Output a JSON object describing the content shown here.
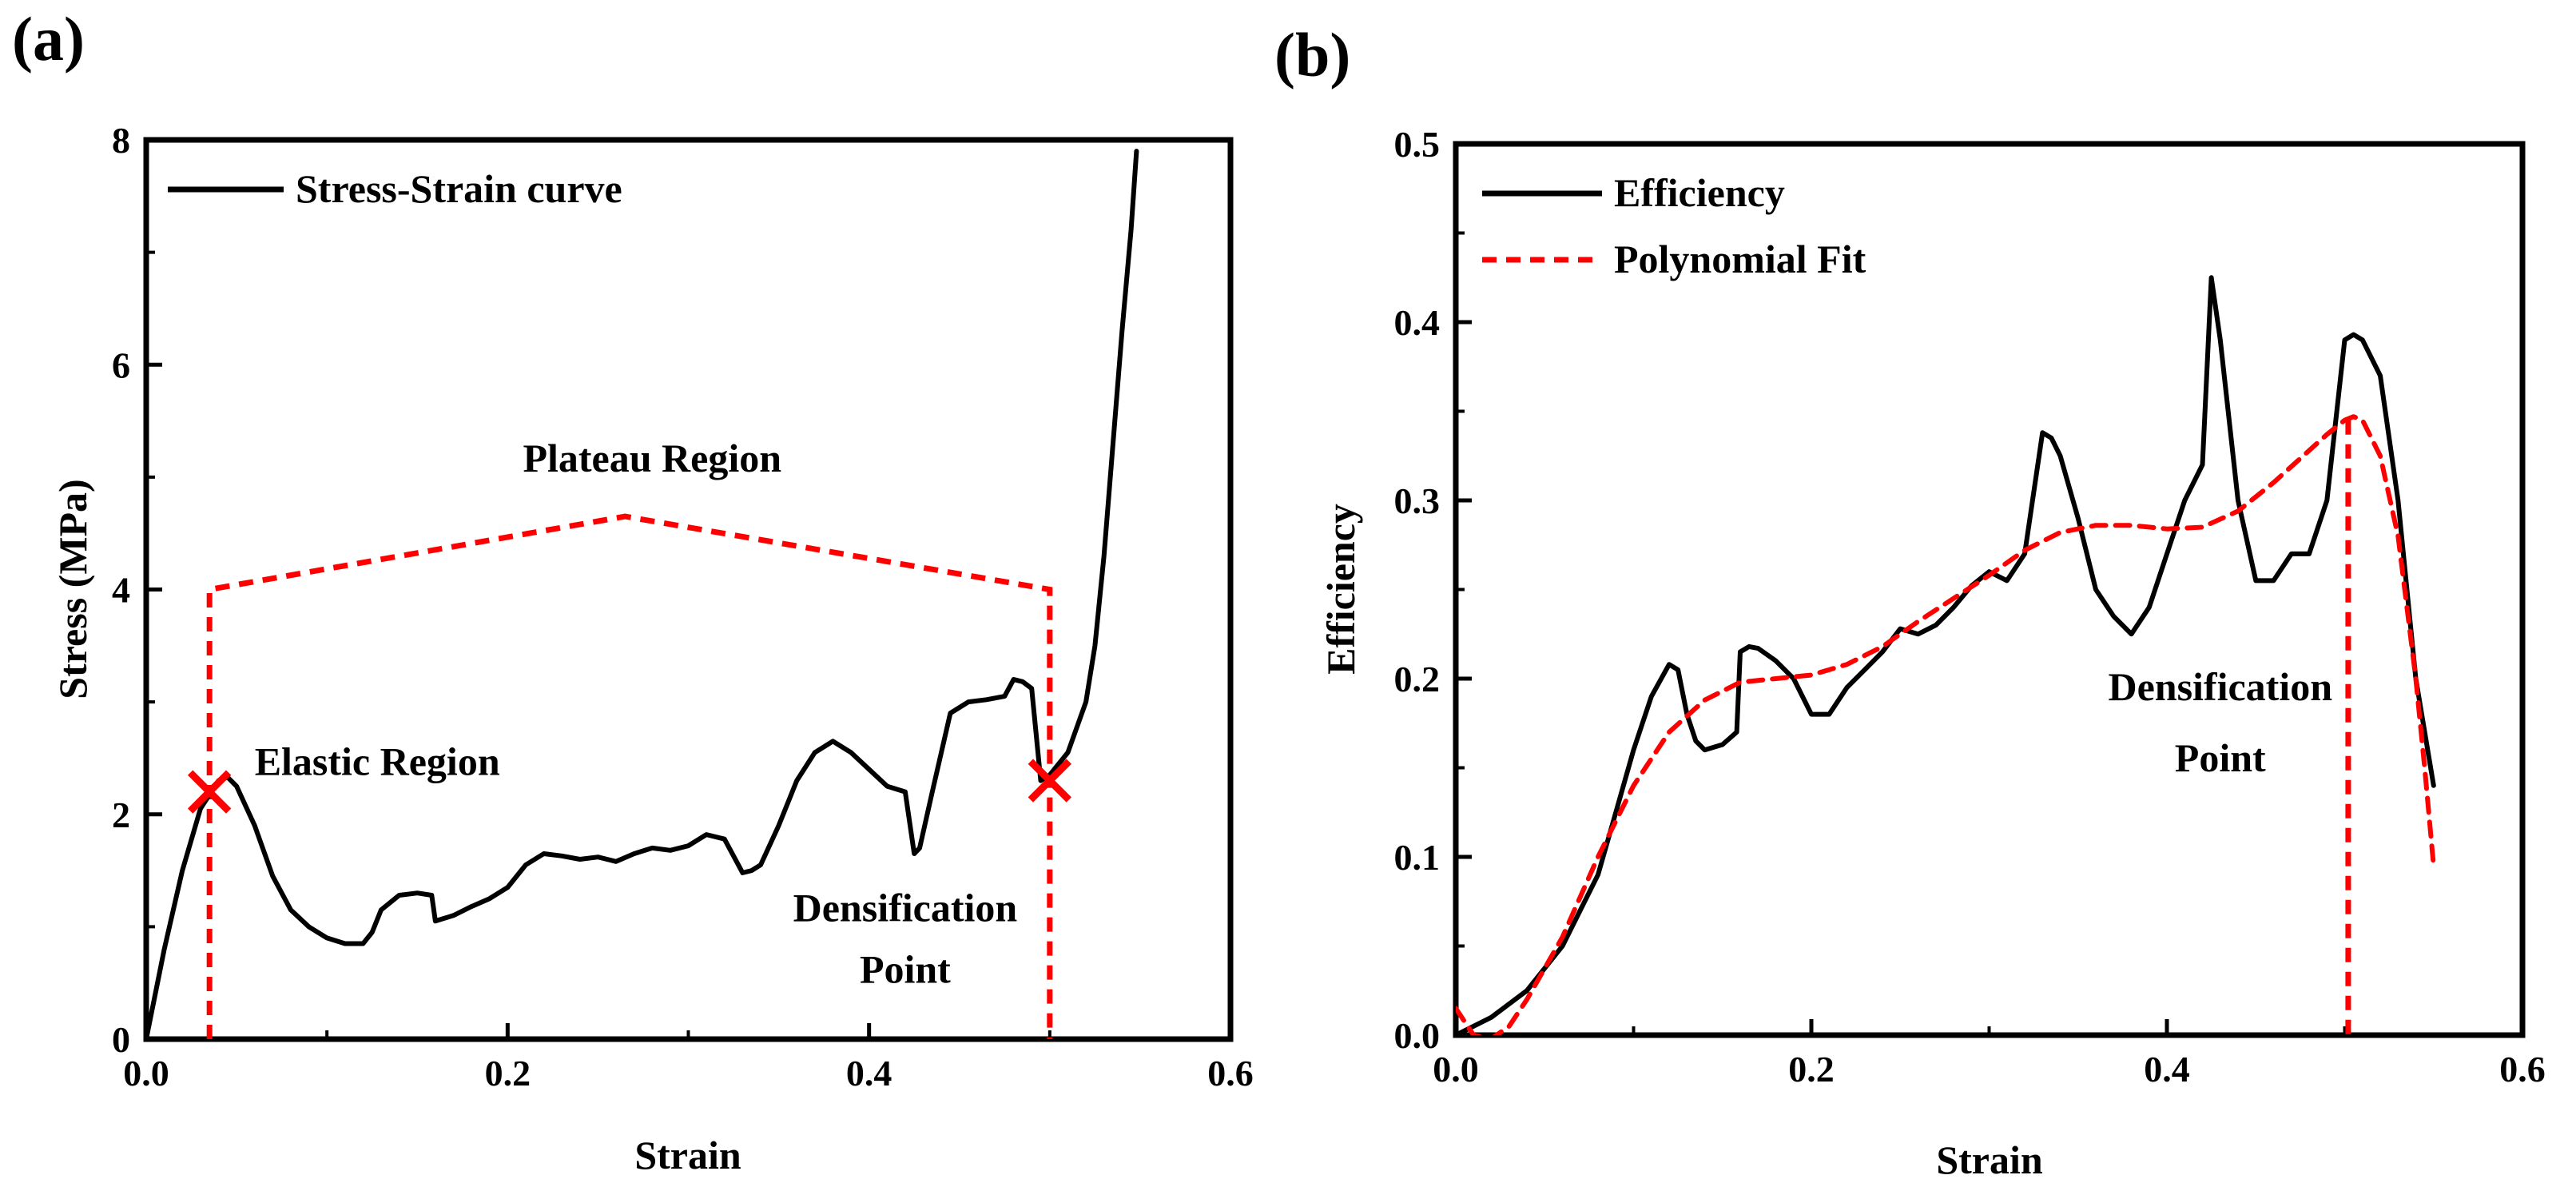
{
  "chart_data": [
    {
      "type": "line",
      "panel_label": "(a)",
      "xlabel": "Strain",
      "ylabel": "Stress (MPa)",
      "xlim": [
        0,
        0.6
      ],
      "ylim": [
        0,
        8
      ],
      "xticks": [
        0.0,
        0.2,
        0.4,
        0.6
      ],
      "xtick_labels": [
        "0.0",
        "0.2",
        "0.4",
        "0.6"
      ],
      "yticks": [
        0,
        2,
        4,
        6,
        8
      ],
      "ytick_labels": [
        "0",
        "2",
        "4",
        "6",
        "8"
      ],
      "legend_position": "top-left",
      "series": [
        {
          "name": "Stress-Strain curve",
          "style": "solid",
          "color": "#000000",
          "x": [
            0,
            0.01,
            0.02,
            0.03,
            0.04,
            0.045,
            0.05,
            0.06,
            0.07,
            0.08,
            0.09,
            0.1,
            0.11,
            0.12,
            0.125,
            0.13,
            0.14,
            0.15,
            0.158,
            0.16,
            0.17,
            0.18,
            0.19,
            0.2,
            0.21,
            0.22,
            0.23,
            0.24,
            0.25,
            0.26,
            0.27,
            0.28,
            0.29,
            0.3,
            0.31,
            0.32,
            0.33,
            0.335,
            0.34,
            0.35,
            0.36,
            0.37,
            0.38,
            0.39,
            0.4,
            0.41,
            0.42,
            0.425,
            0.428,
            0.435,
            0.445,
            0.455,
            0.465,
            0.475,
            0.48,
            0.485,
            0.49,
            0.495,
            0.5,
            0.505,
            0.51,
            0.52,
            0.525,
            0.53,
            0.535,
            0.54,
            0.545,
            0.548
          ],
          "y": [
            0,
            0.8,
            1.5,
            2.05,
            2.3,
            2.33,
            2.25,
            1.9,
            1.45,
            1.15,
            1.0,
            0.9,
            0.85,
            0.85,
            0.95,
            1.15,
            1.28,
            1.3,
            1.28,
            1.05,
            1.1,
            1.18,
            1.25,
            1.35,
            1.55,
            1.65,
            1.63,
            1.6,
            1.62,
            1.58,
            1.65,
            1.7,
            1.68,
            1.72,
            1.82,
            1.78,
            1.48,
            1.5,
            1.55,
            1.9,
            2.3,
            2.55,
            2.65,
            2.55,
            2.4,
            2.25,
            2.2,
            1.65,
            1.7,
            2.2,
            2.9,
            3.0,
            3.02,
            3.05,
            3.2,
            3.18,
            3.12,
            2.3,
            2.35,
            2.45,
            2.55,
            3.0,
            3.5,
            4.3,
            5.3,
            6.3,
            7.2,
            7.9
          ]
        }
      ],
      "markers": [
        {
          "type": "x",
          "x": 0.035,
          "y": 2.2,
          "color": "#ff0000"
        },
        {
          "type": "x",
          "x": 0.5,
          "y": 2.3,
          "color": "#ff0000"
        }
      ],
      "annotation_lines": [
        {
          "style": "dashed",
          "color": "#ff0000",
          "points": [
            [
              0.035,
              0
            ],
            [
              0.035,
              4.0
            ],
            [
              0.265,
              4.65
            ],
            [
              0.5,
              4.0
            ],
            [
              0.5,
              0
            ]
          ]
        }
      ],
      "annotations": [
        {
          "text": "Elastic Region",
          "x": 0.06,
          "y": 2.35
        },
        {
          "text": "Plateau Region",
          "x": 0.28,
          "y": 5.05
        },
        {
          "text": "Densification",
          "x": 0.42,
          "y": 1.05
        },
        {
          "text": "Point",
          "x": 0.42,
          "y": 0.5
        }
      ]
    },
    {
      "type": "line",
      "panel_label": "(b)",
      "xlabel": "Strain",
      "ylabel": "Efficiency",
      "xlim": [
        0,
        0.6
      ],
      "ylim": [
        0,
        0.5
      ],
      "xticks": [
        0.0,
        0.2,
        0.4,
        0.6
      ],
      "xtick_labels": [
        "0.0",
        "0.2",
        "0.4",
        "0.6"
      ],
      "yticks": [
        0.0,
        0.1,
        0.2,
        0.3,
        0.4,
        0.5
      ],
      "ytick_labels": [
        "0.0",
        "0.1",
        "0.2",
        "0.3",
        "0.4",
        "0.5"
      ],
      "legend_position": "top-left",
      "series": [
        {
          "name": "Efficiency",
          "style": "solid",
          "color": "#000000",
          "x": [
            0,
            0.02,
            0.04,
            0.06,
            0.08,
            0.09,
            0.1,
            0.11,
            0.12,
            0.125,
            0.13,
            0.135,
            0.14,
            0.15,
            0.158,
            0.16,
            0.165,
            0.17,
            0.18,
            0.19,
            0.2,
            0.21,
            0.22,
            0.23,
            0.24,
            0.25,
            0.26,
            0.27,
            0.28,
            0.29,
            0.3,
            0.31,
            0.32,
            0.33,
            0.335,
            0.34,
            0.35,
            0.36,
            0.37,
            0.38,
            0.39,
            0.4,
            0.41,
            0.42,
            0.425,
            0.43,
            0.44,
            0.45,
            0.46,
            0.47,
            0.48,
            0.49,
            0.5,
            0.505,
            0.51,
            0.52,
            0.53,
            0.54,
            0.55
          ],
          "y": [
            0,
            0.01,
            0.025,
            0.05,
            0.09,
            0.125,
            0.16,
            0.19,
            0.208,
            0.205,
            0.18,
            0.165,
            0.16,
            0.163,
            0.17,
            0.215,
            0.218,
            0.217,
            0.21,
            0.2,
            0.18,
            0.18,
            0.195,
            0.205,
            0.215,
            0.228,
            0.225,
            0.23,
            0.24,
            0.252,
            0.26,
            0.255,
            0.27,
            0.338,
            0.335,
            0.325,
            0.29,
            0.25,
            0.235,
            0.225,
            0.24,
            0.27,
            0.3,
            0.32,
            0.425,
            0.39,
            0.3,
            0.255,
            0.255,
            0.27,
            0.27,
            0.3,
            0.39,
            0.393,
            0.39,
            0.37,
            0.3,
            0.2,
            0.14
          ]
        },
        {
          "name": "Polynomial Fit",
          "style": "dashed",
          "color": "#ff0000",
          "x": [
            0,
            0.01,
            0.02,
            0.03,
            0.04,
            0.06,
            0.08,
            0.1,
            0.12,
            0.14,
            0.16,
            0.18,
            0.2,
            0.22,
            0.24,
            0.26,
            0.28,
            0.3,
            0.32,
            0.34,
            0.36,
            0.38,
            0.4,
            0.42,
            0.44,
            0.46,
            0.48,
            0.49,
            0.5,
            0.505,
            0.51,
            0.52,
            0.53,
            0.54,
            0.545,
            0.55
          ],
          "y": [
            0.015,
            0.0,
            -0.002,
            0.005,
            0.02,
            0.055,
            0.1,
            0.14,
            0.17,
            0.188,
            0.198,
            0.2,
            0.202,
            0.208,
            0.218,
            0.232,
            0.245,
            0.258,
            0.272,
            0.282,
            0.286,
            0.286,
            0.284,
            0.285,
            0.294,
            0.31,
            0.328,
            0.337,
            0.345,
            0.347,
            0.345,
            0.325,
            0.28,
            0.2,
            0.15,
            0.095
          ]
        }
      ],
      "annotation_lines": [
        {
          "style": "dashed",
          "color": "#ff0000",
          "points": [
            [
              0.502,
              0.345
            ],
            [
              0.502,
              0.0
            ]
          ]
        }
      ],
      "annotations": [
        {
          "text": "Densification",
          "x": 0.43,
          "y": 0.188
        },
        {
          "text": "Point",
          "x": 0.43,
          "y": 0.148
        }
      ]
    }
  ]
}
